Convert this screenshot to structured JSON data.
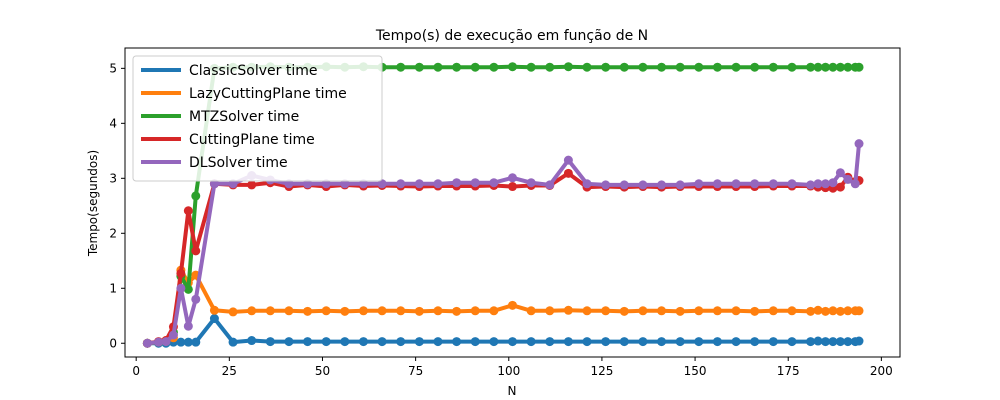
{
  "chart_data": {
    "type": "line",
    "title": "Tempo(s) de execução em função de N",
    "xlabel": "N",
    "ylabel": "Tempo(segundos)",
    "xlim": [
      -3,
      205
    ],
    "ylim": [
      -0.25,
      5.37
    ],
    "xticks": [
      0,
      25,
      50,
      75,
      100,
      125,
      150,
      175,
      200
    ],
    "yticks": [
      0,
      1,
      2,
      3,
      4,
      5
    ],
    "grid": false,
    "legend_position": "top-left",
    "x": [
      3,
      6,
      8,
      10,
      12,
      14,
      16,
      21,
      26,
      31,
      36,
      41,
      46,
      51,
      56,
      61,
      66,
      71,
      76,
      81,
      86,
      91,
      96,
      101,
      106,
      111,
      116,
      121,
      126,
      131,
      136,
      141,
      146,
      151,
      156,
      161,
      166,
      171,
      176,
      181,
      183,
      185,
      187,
      189,
      191,
      193,
      194
    ],
    "series": [
      {
        "name": "ClassicSolver time",
        "color": "#1f77b4",
        "values": [
          0.0,
          0.0,
          0.0,
          0.02,
          0.02,
          0.02,
          0.02,
          0.45,
          0.02,
          0.05,
          0.03,
          0.03,
          0.03,
          0.03,
          0.03,
          0.03,
          0.03,
          0.03,
          0.03,
          0.03,
          0.03,
          0.03,
          0.03,
          0.03,
          0.03,
          0.03,
          0.03,
          0.03,
          0.03,
          0.03,
          0.03,
          0.03,
          0.03,
          0.03,
          0.03,
          0.03,
          0.03,
          0.03,
          0.03,
          0.03,
          0.04,
          0.03,
          0.03,
          0.03,
          0.03,
          0.03,
          0.04
        ]
      },
      {
        "name": "LazyCuttingPlane time",
        "color": "#ff7f0e",
        "values": [
          0.0,
          0.02,
          0.05,
          0.1,
          1.33,
          1.1,
          1.24,
          0.6,
          0.57,
          0.59,
          0.59,
          0.59,
          0.58,
          0.59,
          0.58,
          0.59,
          0.59,
          0.59,
          0.58,
          0.59,
          0.58,
          0.59,
          0.59,
          0.69,
          0.59,
          0.59,
          0.6,
          0.59,
          0.59,
          0.58,
          0.59,
          0.59,
          0.58,
          0.59,
          0.59,
          0.59,
          0.58,
          0.59,
          0.59,
          0.58,
          0.6,
          0.58,
          0.59,
          0.58,
          0.59,
          0.59,
          0.59
        ]
      },
      {
        "name": "MTZSolver time",
        "color": "#2ca02c",
        "values": [
          0.0,
          0.02,
          0.03,
          0.2,
          1.22,
          0.98,
          2.68,
          5.0,
          5.02,
          5.02,
          5.03,
          5.02,
          5.02,
          5.03,
          5.02,
          5.03,
          5.02,
          5.02,
          5.02,
          5.02,
          5.02,
          5.02,
          5.02,
          5.03,
          5.02,
          5.02,
          5.03,
          5.02,
          5.02,
          5.02,
          5.02,
          5.02,
          5.02,
          5.02,
          5.02,
          5.02,
          5.02,
          5.02,
          5.02,
          5.02,
          5.02,
          5.02,
          5.02,
          5.02,
          5.02,
          5.02,
          5.02
        ]
      },
      {
        "name": "CuttingPlane time",
        "color": "#d62728",
        "values": [
          0.0,
          0.03,
          0.05,
          0.3,
          1.27,
          2.41,
          1.68,
          2.9,
          2.88,
          2.88,
          2.92,
          2.85,
          2.88,
          2.85,
          2.88,
          2.86,
          2.87,
          2.86,
          2.85,
          2.86,
          2.86,
          2.86,
          2.87,
          2.85,
          2.87,
          2.87,
          3.09,
          2.84,
          2.85,
          2.84,
          2.85,
          2.84,
          2.85,
          2.85,
          2.85,
          2.85,
          2.85,
          2.86,
          2.86,
          2.86,
          2.84,
          2.83,
          2.82,
          2.84,
          3.02,
          2.94,
          2.96
        ]
      },
      {
        "name": "DLSolver time",
        "color": "#9467bd",
        "values": [
          0.0,
          0.02,
          0.03,
          0.15,
          1.0,
          0.31,
          0.8,
          2.9,
          2.9,
          3.05,
          2.97,
          2.9,
          2.9,
          2.9,
          2.9,
          2.9,
          2.9,
          2.9,
          2.9,
          2.9,
          2.92,
          2.92,
          2.92,
          3.01,
          2.92,
          2.88,
          3.33,
          2.9,
          2.88,
          2.88,
          2.88,
          2.88,
          2.88,
          2.9,
          2.9,
          2.9,
          2.9,
          2.9,
          2.9,
          2.88,
          2.9,
          2.9,
          2.92,
          3.1,
          2.98,
          2.9,
          3.63
        ]
      }
    ]
  }
}
